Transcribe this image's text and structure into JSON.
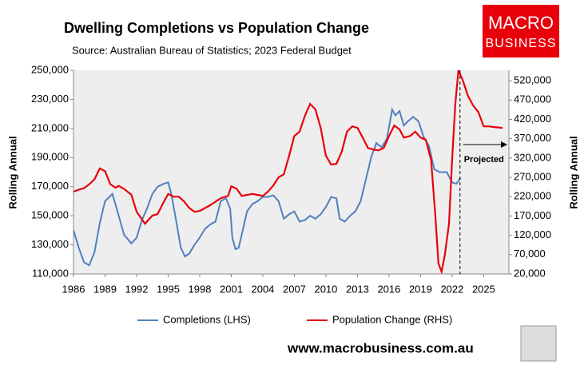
{
  "chart_data": {
    "type": "line",
    "title": "Dwelling Completions vs Population Change",
    "subtitle": "Source: Australian Bureau of Statistics; 2023 Federal Budget",
    "ylabel": "Rolling Annual",
    "y2label": "Rolling Annual",
    "logo": [
      "MACRO",
      "BUSINESS"
    ],
    "footer": "www.macrobusiness.com.au",
    "annotation": {
      "text": "Projected",
      "x": 2022.75
    },
    "xlim": [
      1986,
      2027.4
    ],
    "xticks": [
      1986,
      1989,
      1992,
      1995,
      1998,
      2001,
      2004,
      2007,
      2010,
      2013,
      2016,
      2019,
      2022,
      2025
    ],
    "ylim": [
      110000,
      250000
    ],
    "yticks": [
      {
        "value": 110000,
        "label": "110,000"
      },
      {
        "value": 130000,
        "label": "130,000"
      },
      {
        "value": 150000,
        "label": "150,000"
      },
      {
        "value": 170000,
        "label": "170,000"
      },
      {
        "value": 190000,
        "label": "190,000"
      },
      {
        "value": 210000,
        "label": "210,000"
      },
      {
        "value": 230000,
        "label": "230,000"
      },
      {
        "value": 250000,
        "label": "250,000"
      }
    ],
    "y2lim": [
      20000,
      547000
    ],
    "y2ticks": [
      {
        "value": 20000,
        "label": "20,000"
      },
      {
        "value": 70000,
        "label": "70,000"
      },
      {
        "value": 120000,
        "label": "120,000"
      },
      {
        "value": 170000,
        "label": "170,000"
      },
      {
        "value": 220000,
        "label": "220,000"
      },
      {
        "value": 270000,
        "label": "270,000"
      },
      {
        "value": 320000,
        "label": "320,000"
      },
      {
        "value": 370000,
        "label": "370,000"
      },
      {
        "value": 420000,
        "label": "420,000"
      },
      {
        "value": 470000,
        "label": "470,000"
      },
      {
        "value": 520000,
        "label": "520,000"
      }
    ],
    "grid": false,
    "series": [
      {
        "name": "Completions (LHS)",
        "color": "#4f81bd",
        "x": [
          1986,
          1986.5,
          1987,
          1987.5,
          1988,
          1988.5,
          1989,
          1989.7,
          1990.3,
          1990.8,
          1991.5,
          1992,
          1992.5,
          1993,
          1993.5,
          1994,
          1994.6,
          1995,
          1995.3,
          1995.8,
          1996.2,
          1996.6,
          1997,
          1997.5,
          1998,
          1998.5,
          1999,
          1999.5,
          2000,
          2000.5,
          2000.9,
          2001.1,
          2001.4,
          2001.7,
          2002,
          2002.5,
          2003,
          2003.5,
          2004,
          2004.5,
          2005,
          2005.5,
          2006,
          2006.5,
          2007,
          2007.5,
          2008,
          2008.5,
          2009,
          2009.5,
          2010,
          2010.5,
          2011,
          2011.3,
          2011.8,
          2012.3,
          2012.8,
          2013.3,
          2013.8,
          2014.3,
          2014.8,
          2015.3,
          2015.8,
          2016.3,
          2016.6,
          2017,
          2017.4,
          2017.8,
          2018.3,
          2018.8,
          2019.3,
          2019.8,
          2020.3,
          2020.8,
          2021.5,
          2022,
          2022.4,
          2022.8
        ],
        "values": [
          140000,
          128000,
          118000,
          116000,
          125000,
          145000,
          160000,
          165000,
          150000,
          137000,
          131000,
          135000,
          147000,
          155000,
          165000,
          170000,
          172000,
          173000,
          165000,
          145000,
          128000,
          122000,
          124000,
          130000,
          135000,
          141000,
          144000,
          146000,
          160000,
          162000,
          155000,
          135000,
          127000,
          128000,
          137000,
          153000,
          158000,
          160000,
          163000,
          163000,
          164000,
          160000,
          148000,
          151000,
          153000,
          146000,
          147000,
          150000,
          148000,
          151000,
          156000,
          163000,
          162000,
          148000,
          146000,
          150000,
          153000,
          160000,
          175000,
          190000,
          200000,
          197000,
          203000,
          223000,
          219000,
          222000,
          212000,
          215000,
          218000,
          215000,
          204000,
          198000,
          182000,
          180000,
          180000,
          173000,
          172000,
          176000
        ]
      },
      {
        "name": "Population Change (RHS)",
        "color": "#e8000b",
        "axis": "y2",
        "x": [
          1986,
          1986.5,
          1987,
          1987.5,
          1988,
          1988.5,
          1989,
          1989.5,
          1990,
          1990.3,
          1990.8,
          1991.5,
          1992,
          1992.8,
          1993.5,
          1994,
          1994.5,
          1995,
          1995.5,
          1996,
          1996.5,
          1997,
          1997.5,
          1998,
          1999,
          2000,
          2000.7,
          2001,
          2001.5,
          2002,
          2003,
          2004,
          2004.5,
          2005,
          2005.5,
          2006,
          2006.5,
          2007,
          2007.5,
          2008,
          2008.5,
          2009,
          2009.5,
          2010,
          2010.5,
          2011,
          2011.5,
          2012,
          2012.5,
          2013,
          2013.5,
          2014,
          2014.5,
          2015,
          2015.5,
          2016,
          2016.5,
          2017,
          2017.4,
          2018,
          2018.5,
          2019,
          2019.5,
          2020,
          2020.4,
          2020.7,
          2021,
          2021.3,
          2021.7,
          2022,
          2022.3,
          2022.6,
          2023,
          2023.5,
          2024,
          2024.5,
          2025,
          2025.5,
          2026,
          2026.8
        ],
        "values": [
          233000,
          238000,
          242000,
          252000,
          265000,
          293000,
          286000,
          252000,
          243000,
          248000,
          240000,
          225000,
          181000,
          150000,
          171000,
          175000,
          202000,
          227000,
          220000,
          220000,
          208000,
          191000,
          181000,
          183000,
          198000,
          216000,
          222000,
          247000,
          241000,
          222000,
          227000,
          222000,
          233000,
          249000,
          270000,
          278000,
          326000,
          377000,
          388000,
          429000,
          460000,
          446000,
          398000,
          326000,
          303000,
          305000,
          336000,
          388000,
          402000,
          398000,
          373000,
          346000,
          342000,
          340000,
          346000,
          377000,
          404000,
          394000,
          373000,
          377000,
          388000,
          373000,
          367000,
          315000,
          171000,
          47000,
          26000,
          68000,
          150000,
          315000,
          460000,
          547000,
          522000,
          481000,
          456000,
          439000,
          402000,
          402000,
          400000,
          398000
        ]
      }
    ]
  }
}
